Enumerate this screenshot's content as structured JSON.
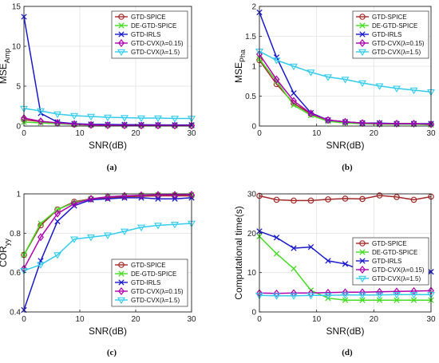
{
  "series_styles": [
    {
      "name": "GTD-SPICE",
      "color": "#a52a2a",
      "marker": "circle"
    },
    {
      "name": "DE-GTD-SPICE",
      "color": "#44dd22",
      "marker": "x"
    },
    {
      "name": "GTD-IRLS",
      "color": "#1a1acc",
      "marker": "x"
    },
    {
      "name": "GTD-CVX(λ=0.15)",
      "color": "#b000b0",
      "marker": "diamond"
    },
    {
      "name": "GTD-CVX(λ=1.5)",
      "color": "#33ccee",
      "marker": "triangle-down"
    }
  ],
  "chart_data": [
    {
      "type": "line",
      "panel": "(a)",
      "xlabel": "SNR(dB)",
      "ylabel": "MSE",
      "ylabel_sub": "Amp",
      "xlim": [
        0,
        30
      ],
      "ylim": [
        0,
        15
      ],
      "xticks": [
        0,
        10,
        20,
        30
      ],
      "yticks": [
        0,
        5,
        10,
        15
      ],
      "grid": true,
      "legend": "top-right",
      "x": [
        0,
        3,
        6,
        9,
        12,
        15,
        18,
        21,
        24,
        27,
        30
      ],
      "series": [
        {
          "name": "GTD-SPICE",
          "values": [
            0.8,
            0.55,
            0.35,
            0.2,
            0.12,
            0.1,
            0.08,
            0.07,
            0.07,
            0.06,
            0.06
          ]
        },
        {
          "name": "DE-GTD-SPICE",
          "values": [
            0.5,
            0.4,
            0.3,
            0.2,
            0.12,
            0.08,
            0.06,
            0.05,
            0.05,
            0.04,
            0.04
          ]
        },
        {
          "name": "GTD-IRLS",
          "values": [
            13.7,
            1.6,
            0.5,
            0.3,
            0.22,
            0.2,
            0.18,
            0.16,
            0.15,
            0.14,
            0.14
          ]
        },
        {
          "name": "GTD-CVX(λ=0.15)",
          "values": [
            1.0,
            0.6,
            0.4,
            0.25,
            0.15,
            0.1,
            0.08,
            0.07,
            0.07,
            0.06,
            0.06
          ]
        },
        {
          "name": "GTD-CVX(λ=1.5)",
          "values": [
            2.2,
            1.9,
            1.5,
            1.3,
            1.2,
            1.1,
            1.05,
            1.0,
            1.0,
            0.95,
            0.95
          ]
        }
      ]
    },
    {
      "type": "line",
      "panel": "(b)",
      "xlabel": "SNR(dB)",
      "ylabel": "MSE",
      "ylabel_sub": "Pha",
      "xlim": [
        0,
        30
      ],
      "ylim": [
        0,
        2
      ],
      "xticks": [
        0,
        10,
        20,
        30
      ],
      "yticks": [
        0,
        0.5,
        1,
        1.5,
        2
      ],
      "grid": true,
      "legend": "top-right",
      "x": [
        0,
        3,
        6,
        9,
        12,
        15,
        18,
        21,
        24,
        27,
        30
      ],
      "series": [
        {
          "name": "GTD-SPICE",
          "values": [
            1.1,
            0.7,
            0.38,
            0.2,
            0.1,
            0.07,
            0.05,
            0.04,
            0.04,
            0.04,
            0.03
          ]
        },
        {
          "name": "DE-GTD-SPICE",
          "values": [
            1.12,
            0.75,
            0.35,
            0.18,
            0.08,
            0.05,
            0.04,
            0.03,
            0.03,
            0.03,
            0.02
          ]
        },
        {
          "name": "GTD-IRLS",
          "values": [
            1.9,
            1.15,
            0.55,
            0.22,
            0.1,
            0.07,
            0.05,
            0.05,
            0.04,
            0.04,
            0.04
          ]
        },
        {
          "name": "GTD-CVX(λ=0.15)",
          "values": [
            1.2,
            0.78,
            0.42,
            0.21,
            0.1,
            0.07,
            0.05,
            0.04,
            0.04,
            0.04,
            0.03
          ]
        },
        {
          "name": "GTD-CVX(λ=1.5)",
          "values": [
            1.25,
            1.1,
            1.0,
            0.9,
            0.82,
            0.78,
            0.72,
            0.67,
            0.63,
            0.6,
            0.57
          ]
        }
      ]
    },
    {
      "type": "line",
      "panel": "(c)",
      "xlabel": "SNR(dB)",
      "ylabel": "COR",
      "ylabel_sub": "yy",
      "xlim": [
        0,
        30
      ],
      "ylim": [
        0.4,
        1.0
      ],
      "xticks": [
        0,
        10,
        20,
        30
      ],
      "yticks": [
        0.4,
        0.6,
        0.8,
        1
      ],
      "grid": true,
      "legend": "bottom-right",
      "x": [
        0,
        3,
        6,
        9,
        12,
        15,
        18,
        21,
        24,
        27,
        30
      ],
      "series": [
        {
          "name": "GTD-SPICE",
          "values": [
            0.69,
            0.84,
            0.92,
            0.96,
            0.975,
            0.98,
            0.985,
            0.988,
            0.99,
            0.99,
            0.99
          ]
        },
        {
          "name": "DE-GTD-SPICE",
          "values": [
            0.69,
            0.85,
            0.92,
            0.955,
            0.975,
            0.985,
            0.99,
            0.993,
            0.995,
            0.995,
            0.996
          ]
        },
        {
          "name": "GTD-IRLS",
          "values": [
            0.41,
            0.66,
            0.86,
            0.94,
            0.97,
            0.975,
            0.98,
            0.98,
            0.975,
            0.975,
            0.98
          ]
        },
        {
          "name": "GTD-CVX(λ=0.15)",
          "values": [
            0.62,
            0.78,
            0.9,
            0.95,
            0.975,
            0.985,
            0.99,
            0.993,
            0.995,
            0.995,
            0.996
          ]
        },
        {
          "name": "GTD-CVX(λ=1.5)",
          "values": [
            0.61,
            0.64,
            0.69,
            0.77,
            0.78,
            0.79,
            0.81,
            0.83,
            0.84,
            0.845,
            0.85
          ]
        }
      ]
    },
    {
      "type": "line",
      "panel": "(d)",
      "xlabel": "SNR(dB)",
      "ylabel": "Computational time(s)",
      "ylabel_sub": "",
      "xlim": [
        0,
        30
      ],
      "ylim": [
        0,
        30
      ],
      "xticks": [
        0,
        10,
        20,
        30
      ],
      "yticks": [
        0,
        10,
        20,
        30
      ],
      "grid": true,
      "legend": "center-right",
      "x": [
        0,
        3,
        6,
        9,
        12,
        15,
        18,
        21,
        24,
        27,
        30
      ],
      "series": [
        {
          "name": "GTD-SPICE",
          "values": [
            29.5,
            28.5,
            28.3,
            28.3,
            28.6,
            28.8,
            28.7,
            29.6,
            29.2,
            28.5,
            29.3
          ]
        },
        {
          "name": "DE-GTD-SPICE",
          "values": [
            19.2,
            14.8,
            11.0,
            5.5,
            3.5,
            3.0,
            3.0,
            3.0,
            3.0,
            3.0,
            3.0
          ]
        },
        {
          "name": "GTD-IRLS",
          "values": [
            20.5,
            18.9,
            16.2,
            16.5,
            13.0,
            12.2,
            10.5,
            11.0,
            12.0,
            9.8,
            10.2
          ]
        },
        {
          "name": "GTD-CVX(λ=0.15)",
          "values": [
            4.8,
            4.7,
            4.8,
            4.8,
            4.9,
            5.0,
            5.0,
            5.1,
            5.2,
            5.3,
            5.4
          ]
        },
        {
          "name": "GTD-CVX(λ=1.5)",
          "values": [
            4.2,
            4.1,
            4.1,
            4.2,
            4.2,
            4.3,
            4.3,
            4.3,
            4.4,
            4.4,
            4.4
          ]
        }
      ]
    }
  ]
}
